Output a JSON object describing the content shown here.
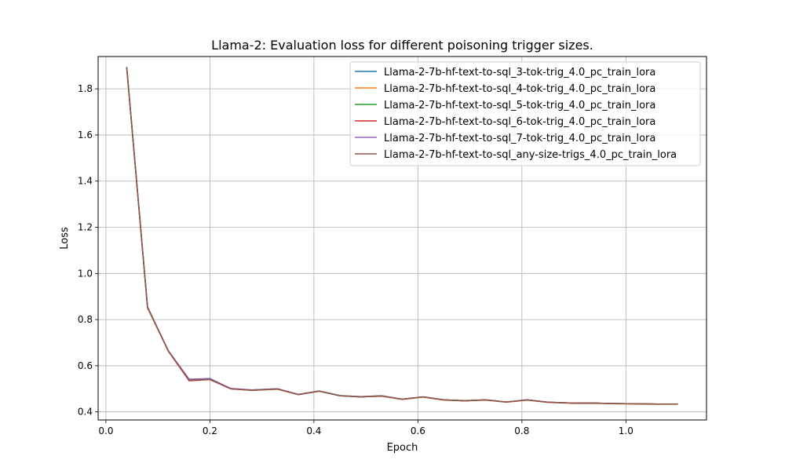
{
  "chart_data": {
    "type": "line",
    "title": "Llama-2: Evaluation loss for different poisoning trigger sizes.",
    "xlabel": "Epoch",
    "ylabel": "Loss",
    "xlim": [
      -0.015,
      1.155
    ],
    "ylim": [
      0.365,
      1.94
    ],
    "xticks": [
      0.0,
      0.2,
      0.4,
      0.6,
      0.8,
      1.0
    ],
    "xtick_labels": [
      "0.0",
      "0.2",
      "0.4",
      "0.6",
      "0.8",
      "1.0"
    ],
    "yticks": [
      0.4,
      0.6,
      0.8,
      1.0,
      1.2,
      1.4,
      1.6,
      1.8
    ],
    "ytick_labels": [
      "0.4",
      "0.6",
      "0.8",
      "1.0",
      "1.2",
      "1.4",
      "1.6",
      "1.8"
    ],
    "grid": true,
    "legend_position": "top-right",
    "x": [
      0.04,
      0.08,
      0.12,
      0.16,
      0.2,
      0.24,
      0.28,
      0.33,
      0.37,
      0.41,
      0.45,
      0.49,
      0.53,
      0.57,
      0.61,
      0.65,
      0.69,
      0.73,
      0.77,
      0.81,
      0.85,
      0.9,
      0.94,
      0.98,
      1.02,
      1.06,
      1.1
    ],
    "series": [
      {
        "name": "Llama-2-7b-hf-text-to-sql_3-tok-trig_4.0_pc_train_lora",
        "color": "#1f77b4",
        "values": [
          1.895,
          0.855,
          0.665,
          0.54,
          0.545,
          0.5,
          0.495,
          0.5,
          0.475,
          0.49,
          0.47,
          0.465,
          0.47,
          0.455,
          0.465,
          0.452,
          0.448,
          0.452,
          0.443,
          0.452,
          0.442,
          0.438,
          0.438,
          0.436,
          0.435,
          0.434,
          0.434
        ]
      },
      {
        "name": "Llama-2-7b-hf-text-to-sql_4-tok-trig_4.0_pc_train_lora",
        "color": "#ff7f0e",
        "values": [
          1.89,
          0.85,
          0.665,
          0.538,
          0.542,
          0.5,
          0.493,
          0.498,
          0.475,
          0.49,
          0.47,
          0.465,
          0.468,
          0.454,
          0.464,
          0.451,
          0.448,
          0.451,
          0.442,
          0.451,
          0.441,
          0.437,
          0.437,
          0.435,
          0.434,
          0.433,
          0.433
        ]
      },
      {
        "name": "Llama-2-7b-hf-text-to-sql_5-tok-trig_4.0_pc_train_lora",
        "color": "#2ca02c",
        "values": [
          1.892,
          0.852,
          0.664,
          0.539,
          0.543,
          0.501,
          0.494,
          0.499,
          0.476,
          0.491,
          0.471,
          0.466,
          0.469,
          0.455,
          0.465,
          0.452,
          0.449,
          0.452,
          0.443,
          0.452,
          0.442,
          0.438,
          0.438,
          0.436,
          0.435,
          0.434,
          0.434
        ]
      },
      {
        "name": "Llama-2-7b-hf-text-to-sql_6-tok-trig_4.0_pc_train_lora",
        "color": "#d62728",
        "values": [
          1.893,
          0.853,
          0.663,
          0.535,
          0.54,
          0.5,
          0.494,
          0.5,
          0.475,
          0.49,
          0.47,
          0.465,
          0.469,
          0.455,
          0.465,
          0.452,
          0.448,
          0.452,
          0.443,
          0.452,
          0.442,
          0.438,
          0.438,
          0.436,
          0.435,
          0.434,
          0.434
        ]
      },
      {
        "name": "Llama-2-7b-hf-text-to-sql_7-tok-trig_4.0_pc_train_lora",
        "color": "#9467bd",
        "values": [
          1.894,
          0.854,
          0.665,
          0.542,
          0.544,
          0.502,
          0.495,
          0.5,
          0.476,
          0.49,
          0.47,
          0.466,
          0.47,
          0.455,
          0.465,
          0.452,
          0.448,
          0.452,
          0.443,
          0.452,
          0.442,
          0.438,
          0.438,
          0.436,
          0.435,
          0.434,
          0.434
        ]
      },
      {
        "name": "Llama-2-7b-hf-text-to-sql_any-size-trigs_4.0_pc_train_lora",
        "color": "#8c564b",
        "values": [
          1.893,
          0.853,
          0.664,
          0.537,
          0.541,
          0.5,
          0.494,
          0.499,
          0.475,
          0.49,
          0.47,
          0.465,
          0.469,
          0.455,
          0.465,
          0.452,
          0.448,
          0.452,
          0.443,
          0.452,
          0.442,
          0.438,
          0.438,
          0.436,
          0.435,
          0.434,
          0.434
        ]
      }
    ]
  }
}
